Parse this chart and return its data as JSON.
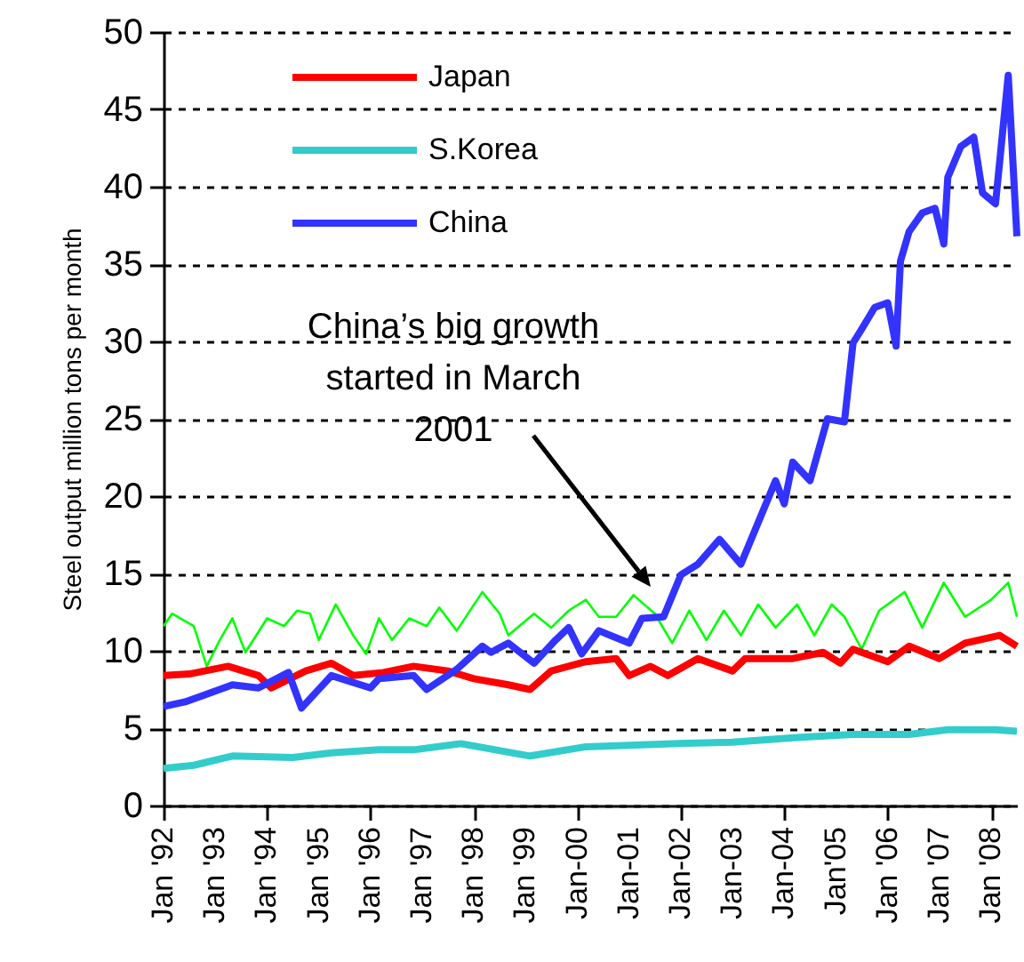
{
  "chart_data": {
    "type": "line",
    "ylabel": "Steel output million tons per month",
    "xlim": [
      "1992-01",
      "2008-07"
    ],
    "ylim": [
      0,
      50
    ],
    "yticks": [
      0,
      5,
      10,
      15,
      20,
      25,
      30,
      35,
      40,
      45,
      50
    ],
    "xticks": [
      {
        "value": "1992-01",
        "label": "Jan '92"
      },
      {
        "value": "1993-01",
        "label": "Jan '93"
      },
      {
        "value": "1994-01",
        "label": "Jan '94"
      },
      {
        "value": "1995-01",
        "label": "Jan '95"
      },
      {
        "value": "1996-01",
        "label": "Jan '96"
      },
      {
        "value": "1997-01",
        "label": "Jan '97"
      },
      {
        "value": "1998-01",
        "label": "Jan '98"
      },
      {
        "value": "1999-01",
        "label": "Jan '99"
      },
      {
        "value": "2000-01",
        "label": "Jan-00"
      },
      {
        "value": "2001-01",
        "label": "Jan-01"
      },
      {
        "value": "2002-01",
        "label": "Jan-02"
      },
      {
        "value": "2003-01",
        "label": "Jan-03"
      },
      {
        "value": "2004-01",
        "label": "Jan-04"
      },
      {
        "value": "2005-01",
        "label": "Jan'05"
      },
      {
        "value": "2006-01",
        "label": "Jan '06"
      },
      {
        "value": "2007-01",
        "label": "Jan '07"
      },
      {
        "value": "2008-01",
        "label": "Jan '08"
      }
    ],
    "grid": "y",
    "legend": "top left",
    "annotations": [
      "China’s big growth started in March 2001"
    ],
    "series": [
      {
        "color": "#00ff00",
        "x": [
          "1992-01",
          "1992-03",
          "1992-08",
          "1992-11",
          "1993-02",
          "1993-05",
          "1993-08",
          "1994-01",
          "1994-05",
          "1994-08",
          "1994-11",
          "1995-01",
          "1995-05",
          "1995-09",
          "1995-12",
          "1996-03",
          "1996-06",
          "1996-10",
          "1997-02",
          "1997-05",
          "1997-09",
          "1998-03",
          "1998-07",
          "1998-09",
          "1999-03",
          "1999-07",
          "1999-11",
          "2000-03",
          "2000-06",
          "2000-10",
          "2001-02",
          "2001-07",
          "2001-11",
          "2002-03",
          "2002-07",
          "2002-11",
          "2003-03",
          "2003-07",
          "2003-11",
          "2004-04",
          "2004-08",
          "2004-12",
          "2005-03",
          "2005-07",
          "2005-11",
          "2006-05",
          "2006-09",
          "2007-02",
          "2007-07",
          "2008-01",
          "2008-05",
          "2008-07"
        ],
        "values": [
          11.6,
          12.4,
          11.6,
          9.0,
          10.7,
          12.1,
          9.9,
          12.1,
          11.6,
          12.6,
          12.4,
          10.7,
          13.0,
          11.0,
          9.8,
          12.1,
          10.7,
          12.1,
          11.6,
          12.8,
          11.3,
          13.8,
          12.4,
          11.0,
          12.4,
          11.5,
          12.6,
          13.3,
          12.2,
          12.2,
          13.6,
          12.4,
          10.5,
          12.6,
          10.7,
          12.6,
          11.0,
          13.0,
          11.5,
          13.0,
          11.0,
          13.0,
          12.2,
          10.1,
          12.6,
          13.8,
          11.5,
          14.4,
          12.2,
          13.3,
          14.4,
          12.2
        ]
      },
      {
        "name": "Japan",
        "color": "#ff0000",
        "x": [
          "1992-01",
          "1992-07",
          "1993-04",
          "1993-11",
          "1994-02",
          "1994-10",
          "1995-04",
          "1995-09",
          "1996-04",
          "1996-11",
          "1997-07",
          "1998-01",
          "1998-09",
          "1999-02",
          "1999-07",
          "2000-03",
          "2000-10",
          "2001-01",
          "2001-06",
          "2001-10",
          "2002-05",
          "2003-01",
          "2003-04",
          "2004-03",
          "2004-10",
          "2005-02",
          "2005-05",
          "2006-01",
          "2006-06",
          "2007-01",
          "2007-07",
          "2008-03",
          "2008-07"
        ],
        "values": [
          8.4,
          8.5,
          9.0,
          8.4,
          7.6,
          8.7,
          9.2,
          8.4,
          8.6,
          9.0,
          8.7,
          8.2,
          7.8,
          7.5,
          8.7,
          9.3,
          9.5,
          8.4,
          9.0,
          8.4,
          9.5,
          8.7,
          9.5,
          9.5,
          9.9,
          9.2,
          10.1,
          9.3,
          10.3,
          9.5,
          10.5,
          11.0,
          10.3
        ]
      },
      {
        "name": "S.Korea",
        "color": "#33cccc",
        "x": [
          "1992-01",
          "1992-08",
          "1993-05",
          "1994-07",
          "1995-04",
          "1996-03",
          "1996-11",
          "1997-10",
          "1998-06",
          "1999-02",
          "2000-03",
          "2001-11",
          "2003-01",
          "2004-04",
          "2005-05",
          "2006-06",
          "2007-03",
          "2008-02",
          "2008-07"
        ],
        "values": [
          2.4,
          2.6,
          3.2,
          3.1,
          3.4,
          3.6,
          3.6,
          4.0,
          3.6,
          3.2,
          3.8,
          4.0,
          4.1,
          4.4,
          4.6,
          4.6,
          4.9,
          4.9,
          4.8
        ]
      },
      {
        "name": "China",
        "color": "#3333ff",
        "x": [
          "1992-01",
          "1992-06",
          "1992-11",
          "1993-05",
          "1993-11",
          "1994-06",
          "1994-09",
          "1995-04",
          "1996-01",
          "1996-03",
          "1996-11",
          "1997-02",
          "1997-09",
          "1998-03",
          "1998-05",
          "1998-09",
          "1999-03",
          "1999-08",
          "1999-11",
          "2000-02",
          "2000-06",
          "2001-01",
          "2001-04",
          "2001-09",
          "2002-01",
          "2002-05",
          "2002-10",
          "2003-03",
          "2003-11",
          "2004-01",
          "2004-03",
          "2004-07",
          "2004-11",
          "2005-03",
          "2005-05",
          "2005-07",
          "2005-10",
          "2006-01",
          "2006-03",
          "2006-04",
          "2006-06",
          "2006-09",
          "2006-12",
          "2007-02",
          "2007-03",
          "2007-06",
          "2007-09",
          "2007-11",
          "2008-02",
          "2008-05",
          "2008-07"
        ],
        "values": [
          6.4,
          6.7,
          7.2,
          7.8,
          7.6,
          8.6,
          6.3,
          8.4,
          7.6,
          8.2,
          8.4,
          7.5,
          8.8,
          10.3,
          9.9,
          10.5,
          9.2,
          10.7,
          11.5,
          9.8,
          11.3,
          10.5,
          12.1,
          12.2,
          14.9,
          15.6,
          17.2,
          15.6,
          21.0,
          19.5,
          22.2,
          21.0,
          25.0,
          24.8,
          29.9,
          30.8,
          32.2,
          32.5,
          29.7,
          35.2,
          37.1,
          38.3,
          38.6,
          36.3,
          40.6,
          42.6,
          43.2,
          39.6,
          38.9,
          47.2,
          36.8
        ]
      }
    ]
  }
}
